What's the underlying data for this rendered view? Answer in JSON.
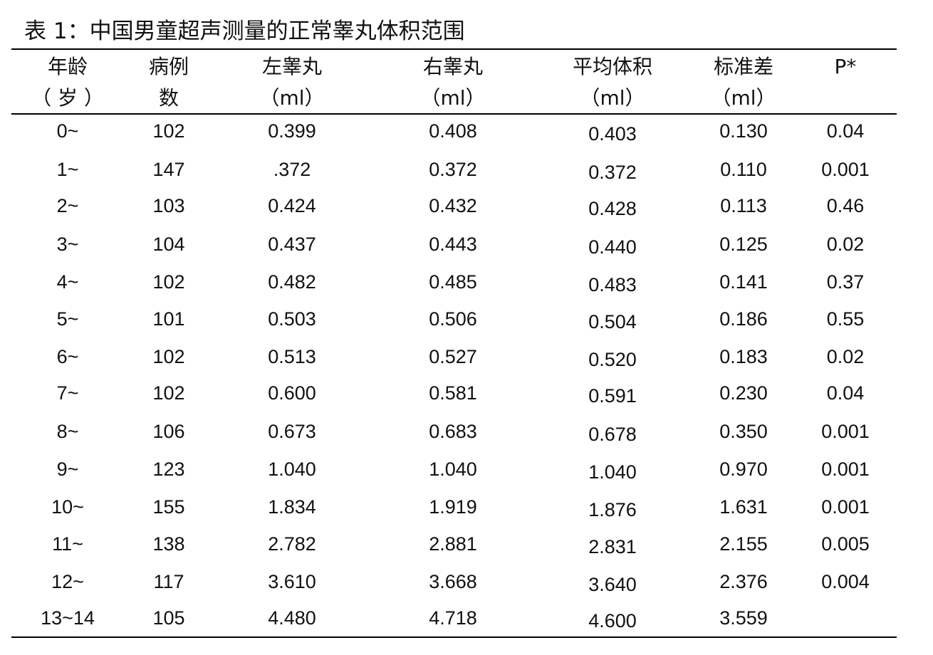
{
  "caption": "表 1：中国男童超声测量的正常睾丸体积范围",
  "header": {
    "age": [
      "年龄",
      "（ 岁 ）"
    ],
    "cases": [
      "病例",
      "数"
    ],
    "left": [
      "左睾丸",
      "（ml）"
    ],
    "right": [
      "右睾丸",
      "（ml）"
    ],
    "mean": [
      "平均体积",
      "（ml）"
    ],
    "sd": [
      "标准差",
      "（ml）"
    ],
    "p": [
      "P*",
      ""
    ]
  },
  "rows": [
    {
      "age": "0~",
      "cases": "102",
      "left": "0.399",
      "right": "0.408",
      "mean": "0.403",
      "sd": "0.130",
      "p": "0.04"
    },
    {
      "age": "1~",
      "cases": "147",
      "left": ".372",
      "right": "0.372",
      "mean": "0.372",
      "sd": "0.110",
      "p": "0.001"
    },
    {
      "age": "2~",
      "cases": "103",
      "left": "0.424",
      "right": "0.432",
      "mean": "0.428",
      "sd": "0.113",
      "p": "0.46"
    },
    {
      "age": "3~",
      "cases": "104",
      "left": "0.437",
      "right": "0.443",
      "mean": "0.440",
      "sd": "0.125",
      "p": "0.02"
    },
    {
      "age": "4~",
      "cases": "102",
      "left": "0.482",
      "right": "0.485",
      "mean": "0.483",
      "sd": "0.141",
      "p": "0.37"
    },
    {
      "age": "5~",
      "cases": "101",
      "left": "0.503",
      "right": "0.506",
      "mean": "0.504",
      "sd": "0.186",
      "p": "0.55"
    },
    {
      "age": "6~",
      "cases": "102",
      "left": "0.513",
      "right": "0.527",
      "mean": "0.520",
      "sd": "0.183",
      "p": "0.02"
    },
    {
      "age": "7~",
      "cases": "102",
      "left": "0.600",
      "right": "0.581",
      "mean": "0.591",
      "sd": "0.230",
      "p": "0.04"
    },
    {
      "age": "8~",
      "cases": "106",
      "left": "0.673",
      "right": "0.683",
      "mean": "0.678",
      "sd": "0.350",
      "p": "0.001"
    },
    {
      "age": "9~",
      "cases": "123",
      "left": "1.040",
      "right": "1.040",
      "mean": "1.040",
      "sd": "0.970",
      "p": "0.001"
    },
    {
      "age": "10~",
      "cases": "155",
      "left": "1.834",
      "right": "1.919",
      "mean": "1.876",
      "sd": "1.631",
      "p": "0.001"
    },
    {
      "age": "11~",
      "cases": "138",
      "left": "2.782",
      "right": "2.881",
      "mean": "2.831",
      "sd": "2.155",
      "p": "0.005"
    },
    {
      "age": "12~",
      "cases": "117",
      "left": "3.610",
      "right": "3.668",
      "mean": "3.640",
      "sd": "2.376",
      "p": "0.004"
    },
    {
      "age": "13~14",
      "cases": "105",
      "left": "4.480",
      "right": "4.718",
      "mean": "4.600",
      "sd": "3.559",
      "p": ""
    }
  ]
}
